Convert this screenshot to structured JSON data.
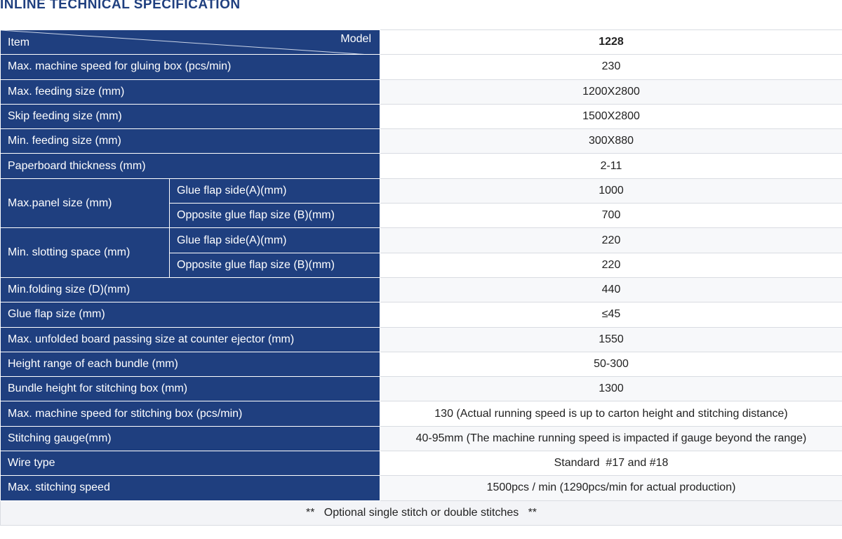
{
  "title": "INLINE TECHNICAL SPECIFICATION",
  "table": {
    "header": {
      "item": "Item",
      "model_label": "Model",
      "model": "1228"
    },
    "rows": [
      {
        "label": "Max. machine speed for gluing box (pcs/min)",
        "value": "230"
      },
      {
        "label": "Max. feeding size (mm)",
        "value": "1200X2800"
      },
      {
        "label": "Skip feeding size (mm)",
        "value": "1500X2800"
      },
      {
        "label": "Min. feeding size (mm)",
        "value": "300X880"
      },
      {
        "label": "Paperboard thickness (mm)",
        "value": "2-11"
      },
      {
        "label": "Max.panel size (mm)",
        "subrows": [
          {
            "label": "Glue flap side(A)(mm)",
            "value": "1000"
          },
          {
            "label": "Opposite glue flap size (B)(mm)",
            "value": "700"
          }
        ]
      },
      {
        "label": "Min. slotting space (mm)",
        "subrows": [
          {
            "label": "Glue flap side(A)(mm)",
            "value": "220"
          },
          {
            "label": "Opposite glue flap size (B)(mm)",
            "value": "220"
          }
        ]
      },
      {
        "label": "Min.folding size (D)(mm)",
        "value": "440"
      },
      {
        "label": "Glue flap size (mm)",
        "value": "≤45"
      },
      {
        "label": "Max. unfolded board passing size at counter ejector (mm)",
        "value": "1550"
      },
      {
        "label": "Height range of each bundle (mm)",
        "value": "50-300"
      },
      {
        "label": "Bundle height for stitching box (mm)",
        "value": "1300"
      },
      {
        "label": "Max. machine speed for stitching box (pcs/min)",
        "value": "130 (Actual running speed is up to carton height and stitching distance)"
      },
      {
        "label": "Stitching gauge(mm)",
        "value": "40-95mm (The machine running speed is impacted if gauge beyond the range)"
      },
      {
        "label": "Wire type",
        "value": "Standard  #17 and #18"
      },
      {
        "label": "Max. stitching speed",
        "value": "1500pcs / min (1290pcs/min for actual production)"
      }
    ],
    "footnote": "**   Optional single stitch or double stitches   **"
  }
}
